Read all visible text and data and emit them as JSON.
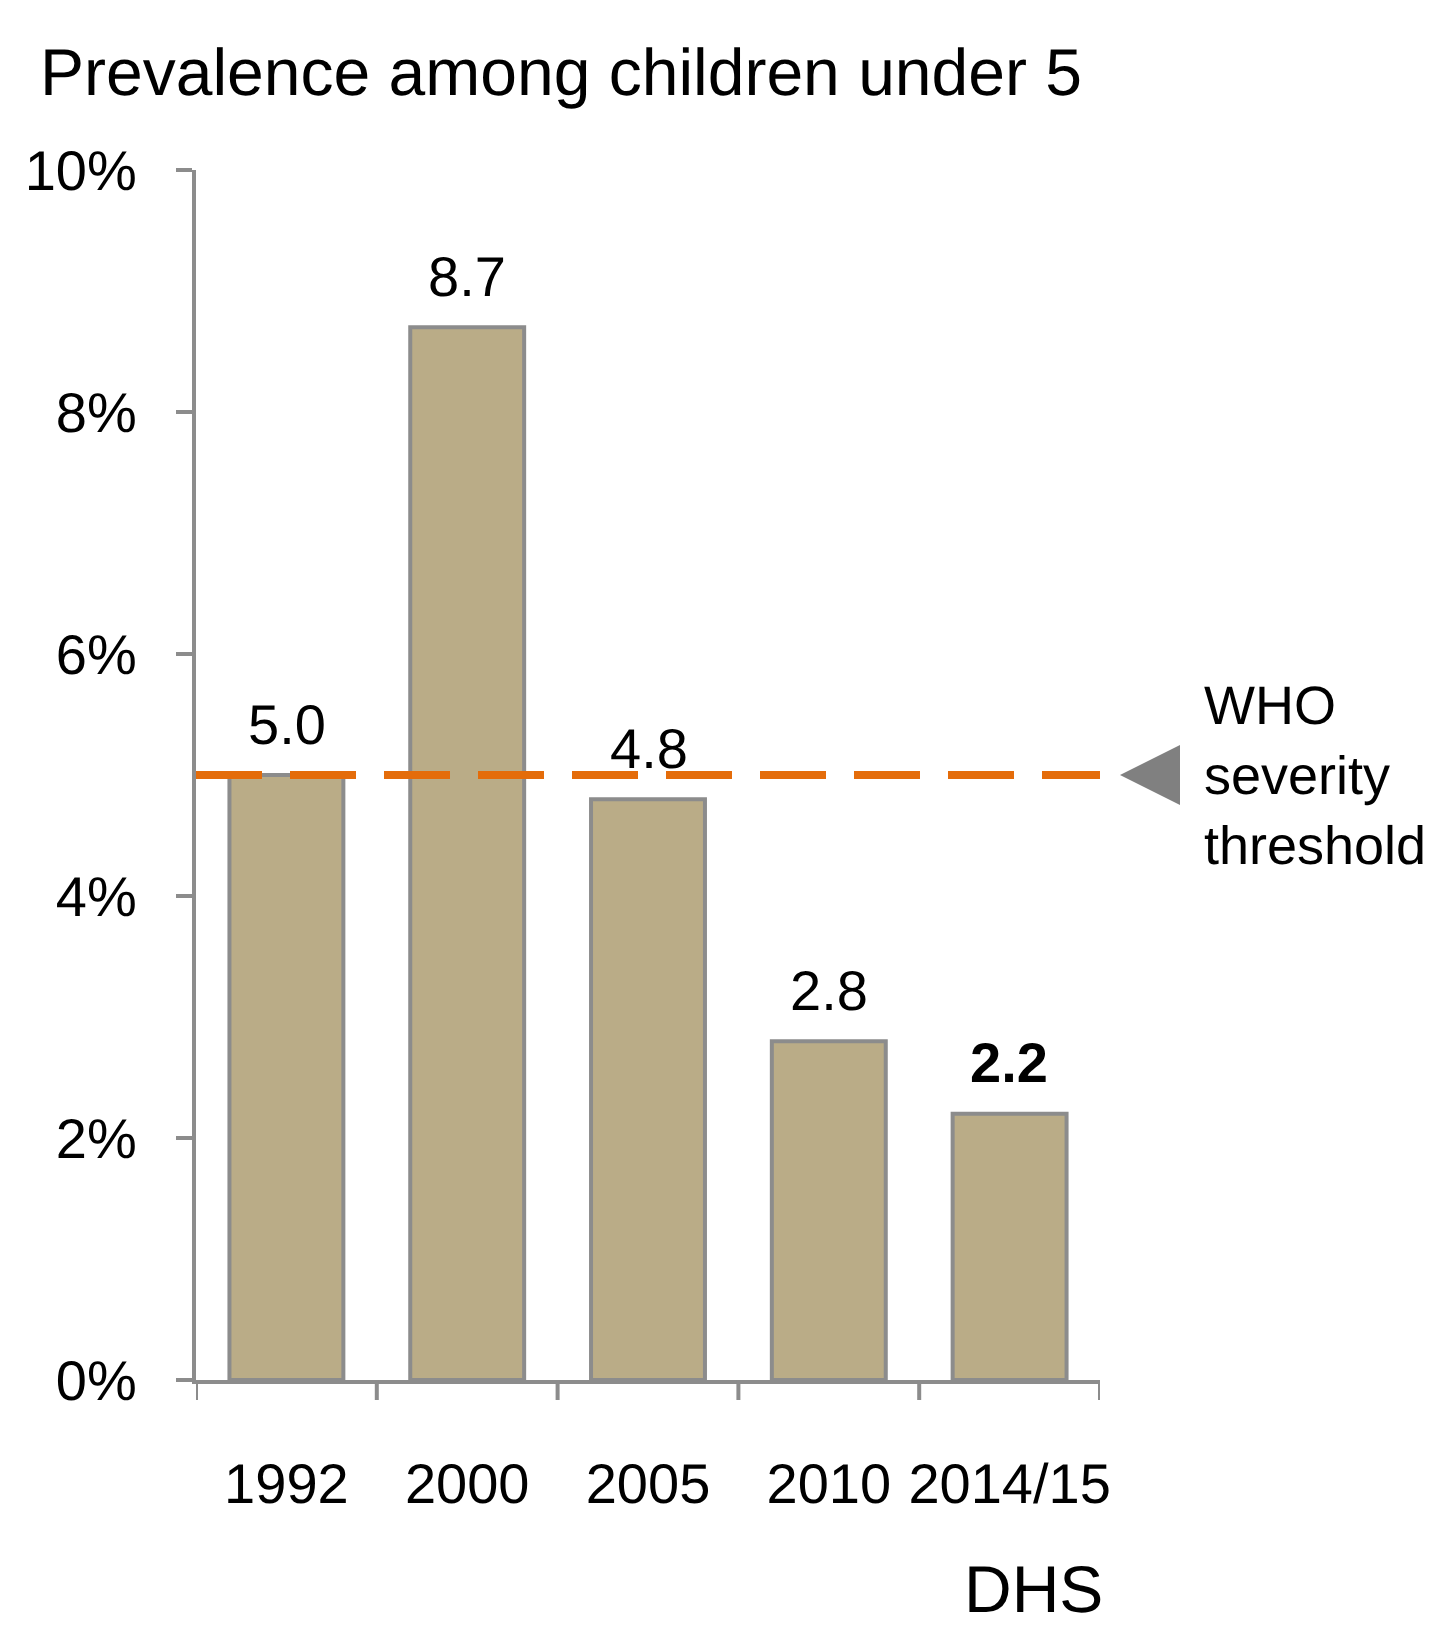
{
  "chart_data": {
    "type": "bar",
    "title": "Prevalence among children under 5",
    "xlabel": "DHS",
    "categories": [
      "1992",
      "2000",
      "2005",
      "2010",
      "2014/15"
    ],
    "values": [
      5.0,
      8.7,
      4.8,
      2.8,
      2.2
    ],
    "color": "#baac87",
    "value_labels": [
      "5.0",
      "8.7",
      "4.8",
      "2.8",
      "2.2"
    ],
    "ylim": [
      0,
      10
    ],
    "yticks": [
      {
        "value": 0,
        "label": "0%"
      },
      {
        "value": 2,
        "label": "2%"
      },
      {
        "value": 4,
        "label": "4%"
      },
      {
        "value": 6,
        "label": "6%"
      },
      {
        "value": 8,
        "label": "8%"
      },
      {
        "value": 10,
        "label": "10%"
      }
    ],
    "ref_lines": [
      {
        "axis": "y",
        "value": 5,
        "label": "WHO severity threshold",
        "color": "#e46c0a",
        "line_style": "dashed"
      }
    ],
    "grid": false,
    "legend": false
  }
}
